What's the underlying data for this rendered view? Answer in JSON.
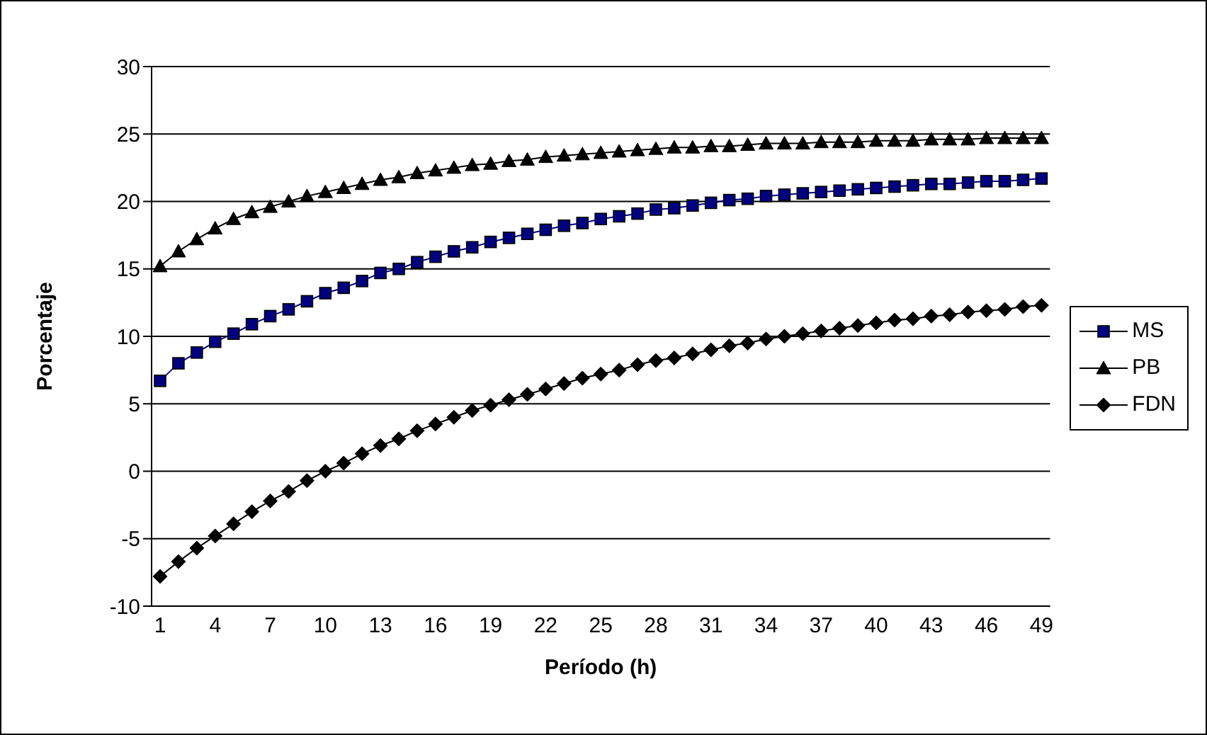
{
  "chart_data": {
    "type": "line",
    "xlabel": "Período (h)",
    "ylabel": "Porcentaje",
    "categories": [
      "1",
      null,
      null,
      "4",
      null,
      null,
      "7",
      null,
      null,
      "10",
      null,
      null,
      "13",
      null,
      null,
      "16",
      null,
      null,
      "19",
      null,
      null,
      "22",
      null,
      null,
      "25",
      null,
      null,
      "28",
      null,
      null,
      "31",
      null,
      null,
      "34",
      null,
      null,
      "37",
      null,
      null,
      "40",
      null,
      null,
      "43",
      null,
      null,
      "46",
      null,
      null,
      "49"
    ],
    "series": [
      {
        "name": "MS",
        "color": "#000080",
        "marker": "square",
        "values": [
          6.7,
          8.0,
          8.8,
          9.6,
          10.2,
          10.9,
          11.5,
          12.0,
          12.6,
          13.2,
          13.6,
          14.1,
          14.7,
          15.0,
          15.5,
          15.9,
          16.3,
          16.6,
          17.0,
          17.3,
          17.6,
          17.9,
          18.2,
          18.4,
          18.7,
          18.9,
          19.1,
          19.4,
          19.5,
          19.7,
          19.9,
          20.1,
          20.2,
          20.4,
          20.5,
          20.6,
          20.7,
          20.8,
          20.9,
          21.0,
          21.1,
          21.2,
          21.3,
          21.3,
          21.4,
          21.5,
          21.5,
          21.6,
          21.7
        ]
      },
      {
        "name": "PB",
        "color": "#000000",
        "marker": "triangle",
        "values": [
          15.2,
          16.3,
          17.2,
          18.0,
          18.7,
          19.2,
          19.6,
          20.0,
          20.4,
          20.7,
          21.0,
          21.3,
          21.6,
          21.8,
          22.1,
          22.3,
          22.5,
          22.7,
          22.8,
          23.0,
          23.1,
          23.3,
          23.4,
          23.5,
          23.6,
          23.7,
          23.8,
          23.9,
          24.0,
          24.0,
          24.1,
          24.1,
          24.2,
          24.3,
          24.3,
          24.3,
          24.4,
          24.4,
          24.4,
          24.5,
          24.5,
          24.5,
          24.6,
          24.6,
          24.6,
          24.7,
          24.7,
          24.7,
          24.7
        ]
      },
      {
        "name": "FDN",
        "color": "#000000",
        "marker": "diamond",
        "values": [
          -7.8,
          -6.7,
          -5.7,
          -4.8,
          -3.9,
          -3.0,
          -2.2,
          -1.5,
          -0.7,
          0,
          0.6,
          1.3,
          1.9,
          2.4,
          3.0,
          3.5,
          4.0,
          4.5,
          4.9,
          5.3,
          5.7,
          6.1,
          6.5,
          6.9,
          7.2,
          7.5,
          7.9,
          8.2,
          8.4,
          8.7,
          9.0,
          9.3,
          9.5,
          9.8,
          10.0,
          10.2,
          10.4,
          10.6,
          10.8,
          11.0,
          11.2,
          11.3,
          11.5,
          11.6,
          11.8,
          11.9,
          12.0,
          12.2,
          12.3
        ]
      }
    ],
    "ylim": [
      -10,
      30
    ],
    "yticks": [
      -10,
      -5,
      0,
      5,
      10,
      15,
      20,
      25,
      30
    ],
    "grid": "y",
    "legend": "right",
    "line_style": "solid"
  }
}
